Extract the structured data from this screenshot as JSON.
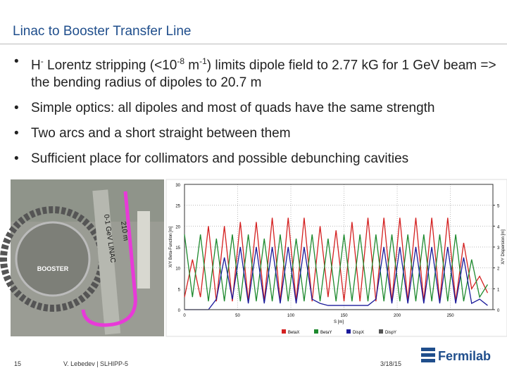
{
  "header": {
    "title": "Linac to Booster Transfer Line"
  },
  "bullets": [
    [
      {
        "t": "H"
      },
      {
        "sup": "-"
      },
      {
        "t": " Lorentz stripping (<10"
      },
      {
        "sup": "-8"
      },
      {
        "t": " m"
      },
      {
        "sup": "-1"
      },
      {
        "t": ") limits dipole field to  2.77 kG for 1 GeV beam => the bending radius of dipoles to 20.7 m"
      }
    ],
    [
      {
        "t": "Simple optics: all dipoles and most  of quads have the same strength"
      }
    ],
    [
      {
        "t": "Two arcs and a short straight between them"
      }
    ],
    [
      {
        "t": "Sufficient place for collimators and possible debunching cavities"
      }
    ]
  ],
  "photo": {
    "booster": "BOOSTER",
    "length": "210 m",
    "linac": "0-1 GeV LINAC"
  },
  "chart_data": {
    "type": "line",
    "xlabel": "S [m]",
    "ylabel": "X/Y Beta-Function [m]",
    "y2label": "X/Y Dispersion [m]",
    "x": [
      0,
      7.5,
      15,
      22.5,
      30,
      37.5,
      45,
      52.5,
      60,
      67.5,
      75,
      82.5,
      90,
      97.5,
      105,
      112.5,
      120,
      127.5,
      135,
      142.5,
      150,
      157.5,
      165,
      172.5,
      180,
      187.5,
      195,
      202.5,
      210,
      217.5,
      225,
      232.5,
      240,
      247.5,
      255,
      262.5,
      270,
      277.5,
      285
    ],
    "xlim": [
      0,
      290
    ],
    "xticks": [
      0,
      50,
      100,
      150,
      200,
      250
    ],
    "ylim": [
      0,
      30
    ],
    "yticks": [
      0,
      5,
      10,
      15,
      20,
      25,
      30
    ],
    "y2lim": [
      0,
      6
    ],
    "y2ticks": [
      0,
      1,
      2,
      3,
      4,
      5
    ],
    "series": [
      {
        "name": "BetaX",
        "color": "#d42020",
        "values": [
          3,
          12,
          3,
          20,
          2,
          20,
          2,
          21,
          2,
          21,
          2,
          22,
          2,
          22,
          2,
          22,
          2,
          20,
          3,
          19,
          2,
          21,
          2,
          22,
          2,
          22,
          2,
          22,
          2,
          22,
          2,
          22,
          2,
          22,
          2,
          16,
          5,
          8,
          4
        ]
      },
      {
        "name": "BetaY",
        "color": "#1e8a2e",
        "values": [
          18,
          3,
          18,
          2,
          17,
          2,
          18,
          2,
          18,
          2,
          17,
          2,
          18,
          2,
          17,
          2,
          18,
          2,
          17,
          2,
          18,
          2,
          18,
          2,
          18,
          2,
          18,
          2,
          18,
          2,
          18,
          2,
          18,
          2,
          18,
          2,
          12,
          3,
          6
        ]
      },
      {
        "name": "DispX",
        "color": "#1a1a9a",
        "axis": "y2",
        "values": [
          0,
          0,
          0,
          0,
          0.5,
          2.5,
          0.5,
          3,
          0.3,
          3,
          0.3,
          3,
          0.3,
          3,
          0.3,
          3,
          0.5,
          0.3,
          0.2,
          0.2,
          0.2,
          0.2,
          0.2,
          0.2,
          0.5,
          3,
          0.3,
          3,
          0.3,
          3,
          0.3,
          3,
          0.3,
          3,
          0.3,
          2.5,
          0.3,
          0.5,
          0.2
        ]
      },
      {
        "name": "DispY",
        "color": "#555555",
        "axis": "y2",
        "values": [
          0,
          0,
          0,
          0,
          0,
          0,
          0,
          0,
          0,
          0,
          0,
          0,
          0,
          0,
          0,
          0,
          0,
          0,
          0,
          0,
          0,
          0,
          0,
          0,
          0,
          0,
          0,
          0,
          0,
          0,
          0,
          0,
          0,
          0,
          0,
          0,
          0,
          0,
          0
        ]
      }
    ]
  },
  "footer": {
    "page": "15",
    "author": "V. Lebedev | SLHIPP-5",
    "date": "3/18/15",
    "logo": "Fermilab"
  }
}
